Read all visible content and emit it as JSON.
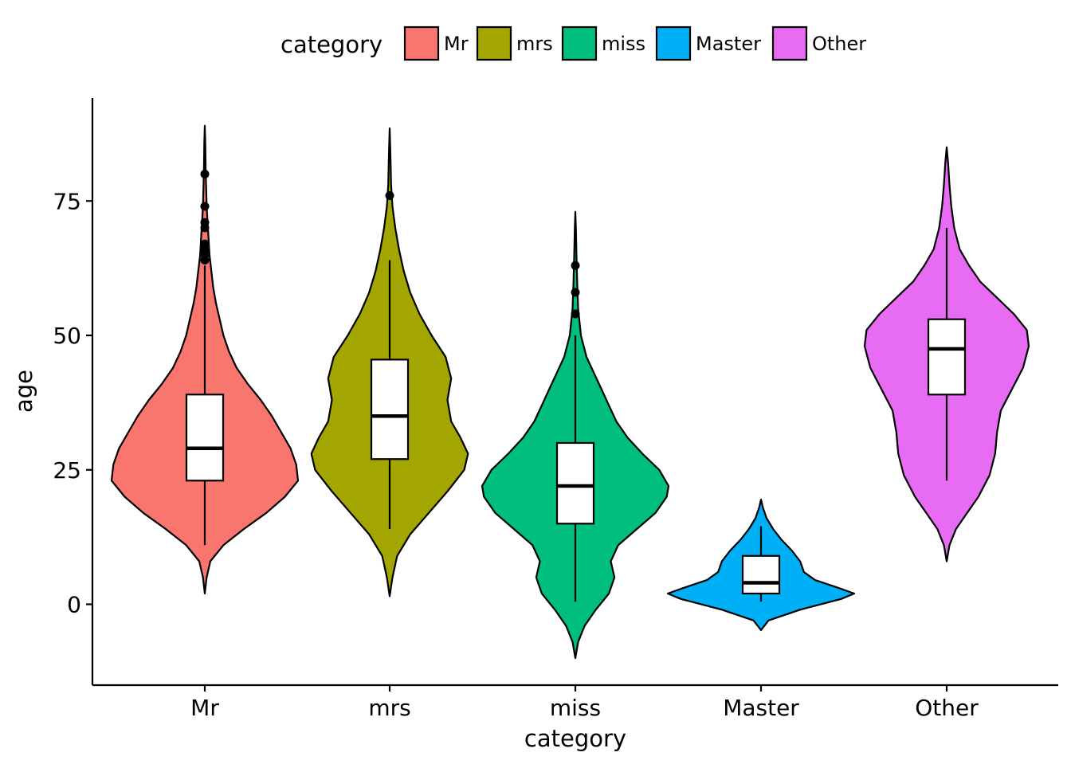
{
  "chart_data": {
    "type": "violin",
    "xlabel": "category",
    "ylabel": "age",
    "ylim": [
      -15,
      94
    ],
    "yticks": [
      0,
      25,
      50,
      75
    ],
    "grid": false,
    "legend": {
      "title": "category",
      "placement": "top",
      "entries": [
        "Mr",
        "mrs",
        "miss",
        "Master",
        "Other"
      ]
    },
    "categories": [
      "Mr",
      "mrs",
      "miss",
      "Master",
      "Other"
    ],
    "series": [
      {
        "category": "Mr",
        "color": "#F8766D",
        "violin": [
          [
            2,
            0
          ],
          [
            5,
            0.02
          ],
          [
            8,
            0.06
          ],
          [
            11,
            0.2
          ],
          [
            14,
            0.42
          ],
          [
            17,
            0.66
          ],
          [
            20,
            0.86
          ],
          [
            23,
            1.0
          ],
          [
            26,
            0.98
          ],
          [
            29,
            0.92
          ],
          [
            32,
            0.82
          ],
          [
            35,
            0.72
          ],
          [
            38,
            0.6
          ],
          [
            41,
            0.46
          ],
          [
            44,
            0.34
          ],
          [
            47,
            0.26
          ],
          [
            50,
            0.2
          ],
          [
            53,
            0.16
          ],
          [
            56,
            0.12
          ],
          [
            59,
            0.09
          ],
          [
            62,
            0.07
          ],
          [
            65,
            0.05
          ],
          [
            68,
            0.04
          ],
          [
            71,
            0.03
          ],
          [
            74,
            0.02
          ],
          [
            77,
            0.015
          ],
          [
            80,
            0.01
          ],
          [
            83,
            0.008
          ],
          [
            86,
            0.005
          ],
          [
            89,
            0
          ]
        ],
        "box": {
          "lower_whisker": 11,
          "q1": 23,
          "median": 29,
          "q3": 39,
          "upper_whisker": 63
        },
        "outliers": [
          64,
          65,
          66,
          67,
          70,
          71,
          74,
          80
        ]
      },
      {
        "category": "mrs",
        "color": "#A3A500",
        "violin": [
          [
            1.5,
            0
          ],
          [
            5,
            0.03
          ],
          [
            9,
            0.08
          ],
          [
            13,
            0.22
          ],
          [
            17,
            0.42
          ],
          [
            21,
            0.62
          ],
          [
            25,
            0.8
          ],
          [
            28,
            0.84
          ],
          [
            31,
            0.76
          ],
          [
            34,
            0.66
          ],
          [
            38,
            0.62
          ],
          [
            42,
            0.66
          ],
          [
            46,
            0.6
          ],
          [
            50,
            0.45
          ],
          [
            54,
            0.32
          ],
          [
            58,
            0.22
          ],
          [
            62,
            0.15
          ],
          [
            66,
            0.1
          ],
          [
            70,
            0.06
          ],
          [
            74,
            0.03
          ],
          [
            78,
            0.015
          ],
          [
            82,
            0.01
          ],
          [
            85,
            0.006
          ],
          [
            88.5,
            0
          ]
        ],
        "box": {
          "lower_whisker": 14,
          "q1": 27,
          "median": 35,
          "q3": 45.5,
          "upper_whisker": 64
        },
        "outliers": [
          76
        ]
      },
      {
        "category": "miss",
        "color": "#00BF7D",
        "violin": [
          [
            -10,
            0
          ],
          [
            -7,
            0.03
          ],
          [
            -4,
            0.1
          ],
          [
            -1,
            0.22
          ],
          [
            2,
            0.36
          ],
          [
            5,
            0.42
          ],
          [
            8,
            0.38
          ],
          [
            11,
            0.46
          ],
          [
            14,
            0.66
          ],
          [
            17,
            0.86
          ],
          [
            20,
            0.98
          ],
          [
            22,
            1.0
          ],
          [
            25,
            0.9
          ],
          [
            28,
            0.72
          ],
          [
            31,
            0.56
          ],
          [
            34,
            0.44
          ],
          [
            37,
            0.36
          ],
          [
            40,
            0.28
          ],
          [
            43,
            0.2
          ],
          [
            46,
            0.12
          ],
          [
            50,
            0.06
          ],
          [
            55,
            0.03
          ],
          [
            60,
            0.02
          ],
          [
            65,
            0.012
          ],
          [
            70,
            0.006
          ],
          [
            73,
            0
          ]
        ],
        "box": {
          "lower_whisker": 0.5,
          "q1": 15,
          "median": 22,
          "q3": 30,
          "upper_whisker": 50
        },
        "outliers": [
          54,
          58,
          63
        ]
      },
      {
        "category": "Master",
        "color": "#00B0F6",
        "violin": [
          [
            -4.8,
            0
          ],
          [
            -3,
            0.08
          ],
          [
            -1,
            0.42
          ],
          [
            1,
            0.86
          ],
          [
            2,
            1.0
          ],
          [
            3,
            0.84
          ],
          [
            4.5,
            0.58
          ],
          [
            6,
            0.46
          ],
          [
            8,
            0.42
          ],
          [
            10,
            0.33
          ],
          [
            12,
            0.22
          ],
          [
            14,
            0.13
          ],
          [
            16,
            0.06
          ],
          [
            18,
            0.02
          ],
          [
            19.5,
            0
          ]
        ],
        "box": {
          "lower_whisker": 0.5,
          "q1": 2,
          "median": 4,
          "q3": 9,
          "upper_whisker": 14.5
        },
        "outliers": []
      },
      {
        "category": "Other",
        "color": "#E76BF3",
        "violin": [
          [
            8,
            0
          ],
          [
            11,
            0.03
          ],
          [
            14,
            0.1
          ],
          [
            17,
            0.22
          ],
          [
            20,
            0.34
          ],
          [
            24,
            0.46
          ],
          [
            28,
            0.52
          ],
          [
            32,
            0.54
          ],
          [
            36,
            0.58
          ],
          [
            40,
            0.7
          ],
          [
            44,
            0.82
          ],
          [
            48,
            0.88
          ],
          [
            51,
            0.86
          ],
          [
            54,
            0.72
          ],
          [
            57,
            0.54
          ],
          [
            60,
            0.36
          ],
          [
            63,
            0.24
          ],
          [
            66,
            0.14
          ],
          [
            70,
            0.08
          ],
          [
            74,
            0.05
          ],
          [
            78,
            0.03
          ],
          [
            82,
            0.015
          ],
          [
            85,
            0
          ]
        ],
        "box": {
          "lower_whisker": 23,
          "q1": 39,
          "median": 47.5,
          "q3": 53,
          "upper_whisker": 70
        },
        "outliers": []
      }
    ]
  }
}
